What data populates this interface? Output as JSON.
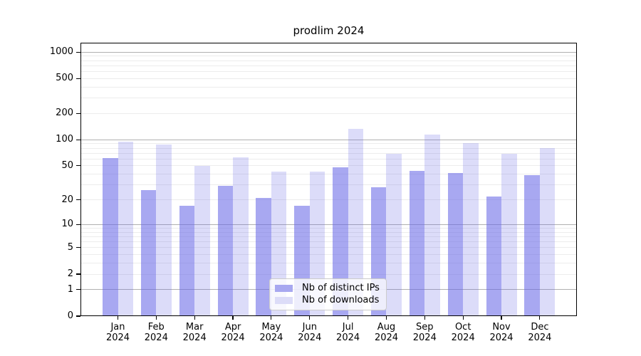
{
  "title": "prodlim 2024",
  "chart_data": {
    "type": "bar",
    "title": "prodlim 2024",
    "x_months": [
      "Jan",
      "Feb",
      "Mar",
      "Apr",
      "May",
      "Jun",
      "Jul",
      "Aug",
      "Sep",
      "Oct",
      "Nov",
      "Dec"
    ],
    "x_year": "2024",
    "series": [
      {
        "name": "Nb of distinct IPs",
        "color": "#a8a8f0",
        "fill": "rgba(102,102,230,0.57)",
        "values": [
          62,
          26,
          17,
          29,
          21,
          17,
          48,
          28,
          44,
          41,
          22,
          39
        ]
      },
      {
        "name": "Nb of downloads",
        "color": "#dcdcf8",
        "fill": "rgba(102,102,230,0.23)",
        "values": [
          95,
          88,
          50,
          63,
          43,
          43,
          134,
          69,
          115,
          92,
          69,
          80
        ]
      }
    ],
    "y_axis": {
      "scale": "log10(value+1)",
      "ticks": [
        0,
        1,
        2,
        5,
        10,
        20,
        50,
        100,
        200,
        500,
        1000
      ],
      "ylim": [
        0,
        1285
      ]
    },
    "grid": {
      "major": [
        1,
        10,
        100,
        1000
      ],
      "minor": [
        2,
        3,
        4,
        5,
        6,
        7,
        8,
        9,
        20,
        30,
        40,
        50,
        60,
        70,
        80,
        90,
        200,
        300,
        400,
        500,
        600,
        700,
        800,
        900
      ],
      "major_color": "#b0b0b0",
      "minor_color": "#ececec"
    },
    "legend_position": "bottom-center"
  },
  "colors": {
    "background": "#ffffff",
    "axis": "#000000",
    "text": "#000000",
    "legend_border": "#cccccc"
  }
}
